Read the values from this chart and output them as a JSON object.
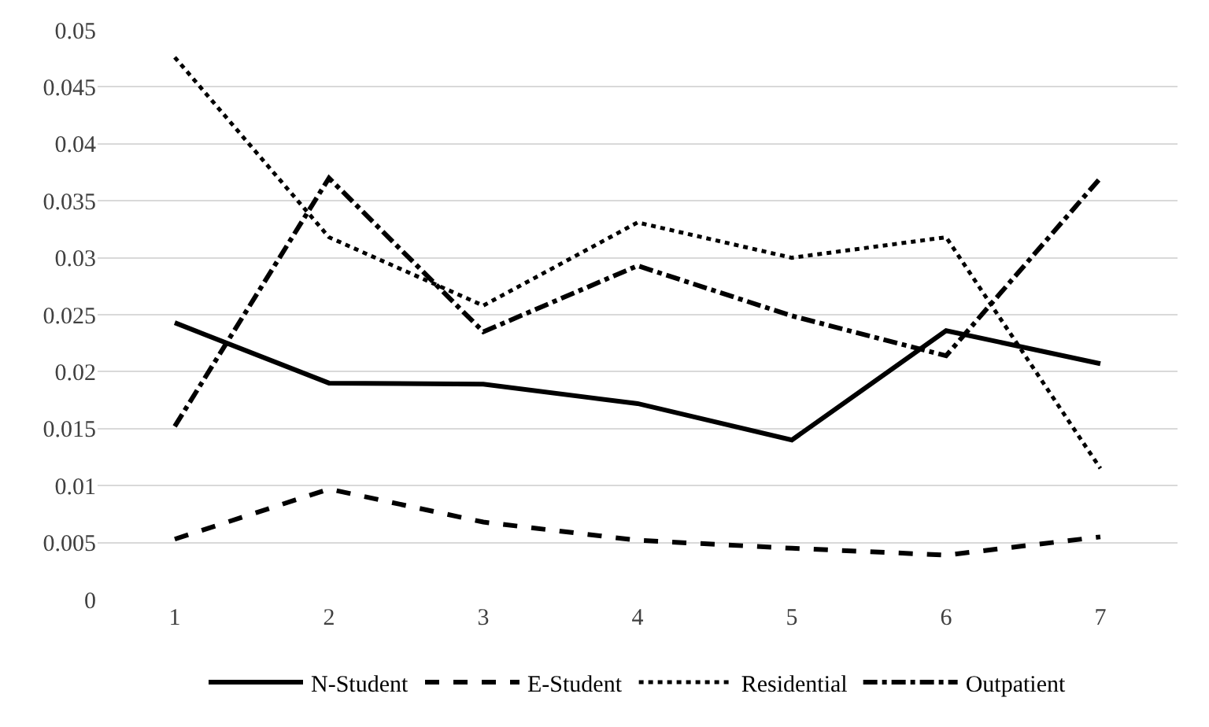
{
  "chart_data": {
    "type": "line",
    "categories": [
      "1",
      "2",
      "3",
      "4",
      "5",
      "6",
      "7"
    ],
    "ylim": [
      0,
      0.05
    ],
    "yticks": [
      0,
      0.005,
      0.01,
      0.015,
      0.02,
      0.025,
      0.03,
      0.035,
      0.04,
      0.045,
      0.05
    ],
    "grid": "y",
    "legend": "bottom",
    "marker": "none",
    "series": [
      {
        "name": "N-Student",
        "color": "#000000",
        "line_style": "solid",
        "values": [
          0.0243,
          0.019,
          0.0189,
          0.0172,
          0.014,
          0.0236,
          0.0207
        ]
      },
      {
        "name": "E-Student",
        "color": "#000000",
        "line_style": "dashed",
        "values": [
          0.0053,
          0.0097,
          0.0068,
          0.0052,
          0.0045,
          0.0039,
          0.0055
        ]
      },
      {
        "name": "Residential",
        "color": "#000000",
        "line_style": "dotted",
        "values": [
          0.0476,
          0.0318,
          0.0258,
          0.0331,
          0.03,
          0.0318,
          0.0115
        ]
      },
      {
        "name": "Outpatient",
        "color": "#000000",
        "line_style": "dashdot",
        "values": [
          0.0152,
          0.037,
          0.0235,
          0.0293,
          0.0249,
          0.0214,
          0.037
        ]
      }
    ]
  }
}
